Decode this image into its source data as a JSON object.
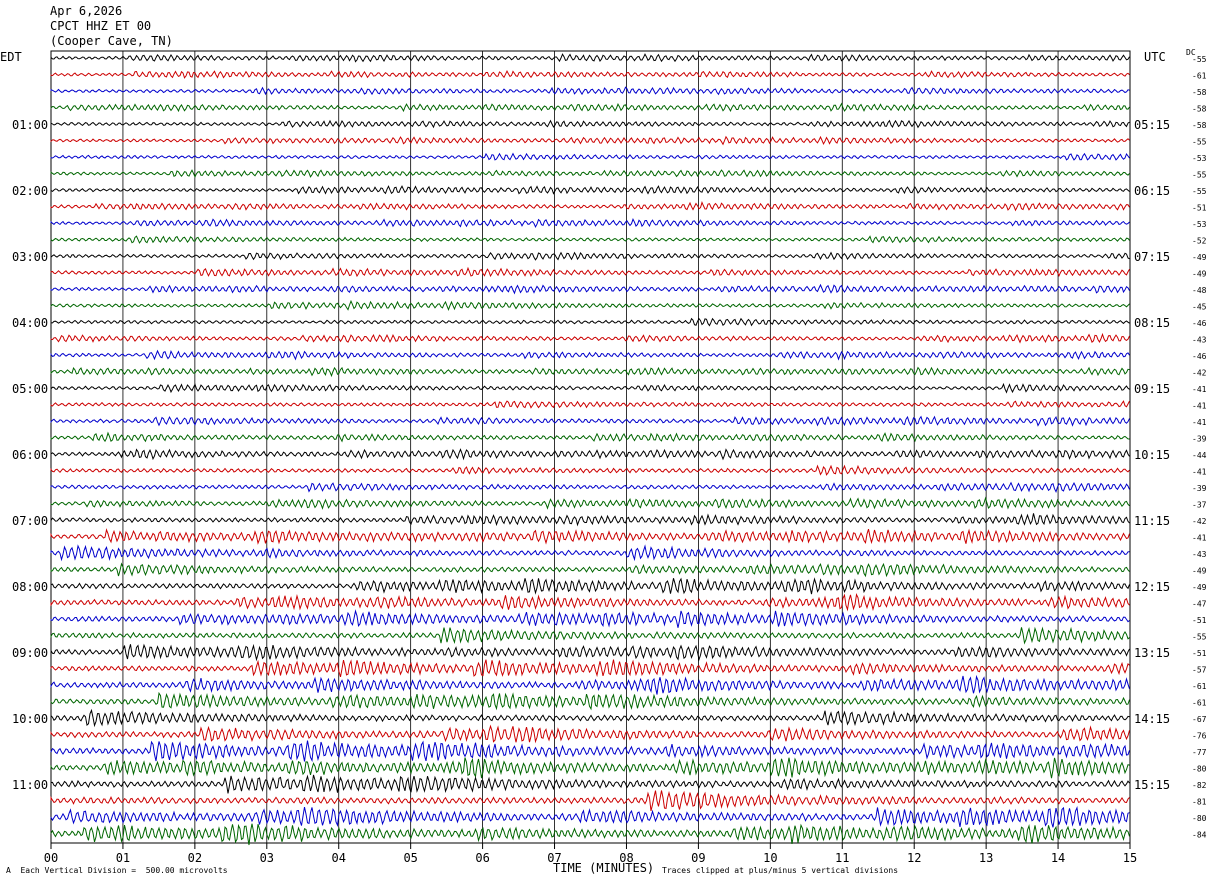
{
  "header": {
    "date": "Apr 6,2026",
    "station": "CPCT HHZ ET 00",
    "location": "(Cooper Cave, TN)"
  },
  "left_tz": "EDT",
  "right_tz": "UTC",
  "dc_label": "DC",
  "footer": {
    "scale_note": "Each Vertical Division =  500.00 microvolts",
    "clip_note": "Traces clipped at plus/minus 5 vertical divisions",
    "corner_mark": "A"
  },
  "colors": {
    "trace_cycle": [
      "#000000",
      "#cc0000",
      "#0000cc",
      "#006600"
    ],
    "grid": "#000000"
  },
  "chart_data": {
    "type": "line",
    "xlabel": "TIME (MINUTES)",
    "x_ticks": [
      "00",
      "01",
      "02",
      "03",
      "04",
      "05",
      "06",
      "07",
      "08",
      "09",
      "10",
      "11",
      "12",
      "13",
      "14",
      "15"
    ],
    "xlim": [
      0,
      15
    ],
    "left_hour_labels": [
      "01:00",
      "02:00",
      "03:00",
      "04:00",
      "05:00",
      "06:00",
      "07:00",
      "08:00",
      "09:00",
      "10:00",
      "11:00"
    ],
    "right_hour_labels": [
      "05:15",
      "06:15",
      "07:15",
      "08:15",
      "09:15",
      "10:15",
      "11:15",
      "12:15",
      "13:15",
      "14:15",
      "15:15"
    ],
    "dc_offsets": [
      -55,
      -61,
      -58,
      -58,
      -58,
      -55,
      -53,
      -55,
      -55,
      -51,
      -53,
      -52,
      -49,
      -49,
      -48,
      -45,
      -46,
      -43,
      -46,
      -42,
      -41,
      -41,
      -41,
      -39,
      -44,
      -41,
      -39,
      -37,
      -42,
      -41,
      -43,
      -49,
      -49,
      -47,
      -51,
      -55,
      -51,
      -57,
      -61,
      -61,
      -67,
      -76,
      -77,
      -80,
      -82,
      -81,
      -80,
      -84
    ],
    "trace_activity": [
      0.25,
      0.25,
      0.25,
      0.25,
      0.25,
      0.25,
      0.25,
      0.25,
      0.28,
      0.28,
      0.28,
      0.28,
      0.3,
      0.3,
      0.3,
      0.3,
      0.3,
      0.3,
      0.3,
      0.3,
      0.32,
      0.35,
      0.35,
      0.35,
      0.38,
      0.4,
      0.4,
      0.4,
      0.5,
      0.6,
      0.6,
      0.6,
      0.65,
      0.7,
      0.7,
      0.7,
      0.7,
      0.72,
      0.75,
      0.75,
      0.75,
      0.8,
      0.85,
      0.85,
      0.85,
      0.9,
      0.9,
      0.9
    ]
  }
}
